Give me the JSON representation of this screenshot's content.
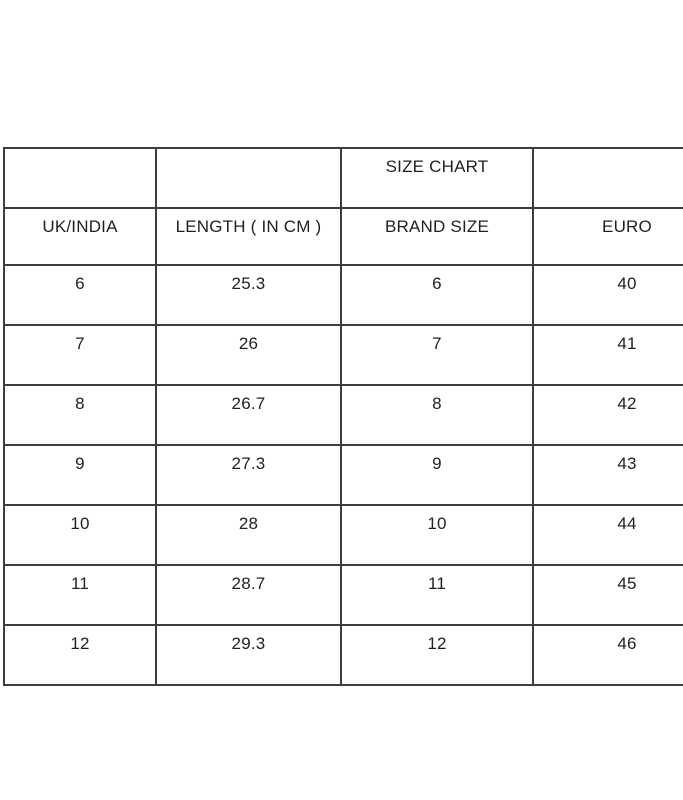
{
  "page": {
    "background_color": "#ffffff",
    "border_color": "#3d3d3d",
    "text_color": "#1f1f1f"
  },
  "size_chart": {
    "title": "SIZE CHART",
    "headers": [
      "UK/INDIA",
      "LENGTH ( IN CM )",
      "BRAND SIZE",
      "EURO"
    ],
    "rows": [
      [
        "6",
        "25.3",
        "6",
        "40"
      ],
      [
        "7",
        "26",
        "7",
        "41"
      ],
      [
        "8",
        "26.7",
        "8",
        "42"
      ],
      [
        "9",
        "27.3",
        "9",
        "43"
      ],
      [
        "10",
        "28",
        "10",
        "44"
      ],
      [
        "11",
        "28.7",
        "11",
        "45"
      ],
      [
        "12",
        "29.3",
        "12",
        "46"
      ]
    ]
  }
}
